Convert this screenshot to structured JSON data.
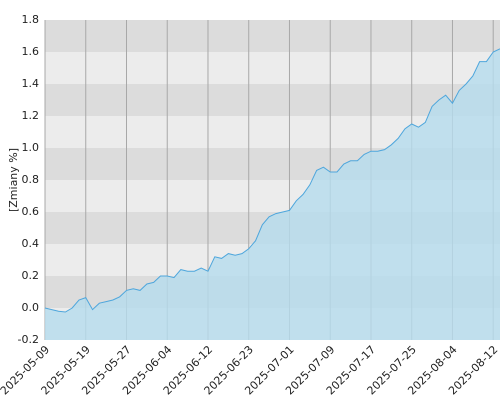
{
  "chart_data": {
    "type": "area",
    "y_label": "[Zmiany %]",
    "categories": [
      "2025-05-09",
      null,
      null,
      null,
      null,
      null,
      "2025-05-19",
      null,
      null,
      null,
      null,
      null,
      "2025-05-27",
      null,
      null,
      null,
      null,
      null,
      "2025-06-04",
      null,
      null,
      null,
      null,
      null,
      "2025-06-12",
      null,
      null,
      null,
      null,
      null,
      "2025-06-23",
      null,
      null,
      null,
      null,
      null,
      "2025-07-01",
      null,
      null,
      null,
      null,
      null,
      "2025-07-09",
      null,
      null,
      null,
      null,
      null,
      "2025-07-17",
      null,
      null,
      null,
      null,
      null,
      "2025-07-25",
      null,
      null,
      null,
      null,
      null,
      "2025-08-04",
      null,
      null,
      null,
      null,
      null,
      "2025-08-12",
      null
    ],
    "values": [
      0,
      -0.01,
      -0.02,
      -0.025,
      0,
      0.05,
      0.065,
      -0.01,
      0.03,
      0.04,
      0.05,
      0.07,
      0.11,
      0.12,
      0.11,
      0.15,
      0.16,
      0.2,
      0.2,
      0.19,
      0.24,
      0.23,
      0.23,
      0.25,
      0.23,
      0.32,
      0.31,
      0.34,
      0.33,
      0.34,
      0.37,
      0.42,
      0.52,
      0.57,
      0.59,
      0.6,
      0.61,
      0.67,
      0.71,
      0.77,
      0.86,
      0.88,
      0.85,
      0.85,
      0.9,
      0.92,
      0.92,
      0.96,
      0.98,
      0.98,
      0.99,
      1.02,
      1.06,
      1.12,
      1.15,
      1.13,
      1.16,
      1.26,
      1.3,
      1.33,
      1.28,
      1.36,
      1.4,
      1.45,
      1.54,
      1.54,
      1.6,
      1.62
    ],
    "color": "#b5dcee",
    "line_color": "#4ea6dc",
    "ylim": [
      -0.2,
      1.8
    ],
    "yticks": [
      -0.2,
      {
        "value": 0,
        "label": "0.0"
      },
      0.2,
      0.4,
      0.6,
      0.8,
      {
        "value": 1,
        "label": "1.0"
      },
      1.2,
      1.4,
      1.6,
      1.8
    ],
    "band_colors": [
      "#ececec",
      "#dcdcdc"
    ],
    "grid": true
  }
}
